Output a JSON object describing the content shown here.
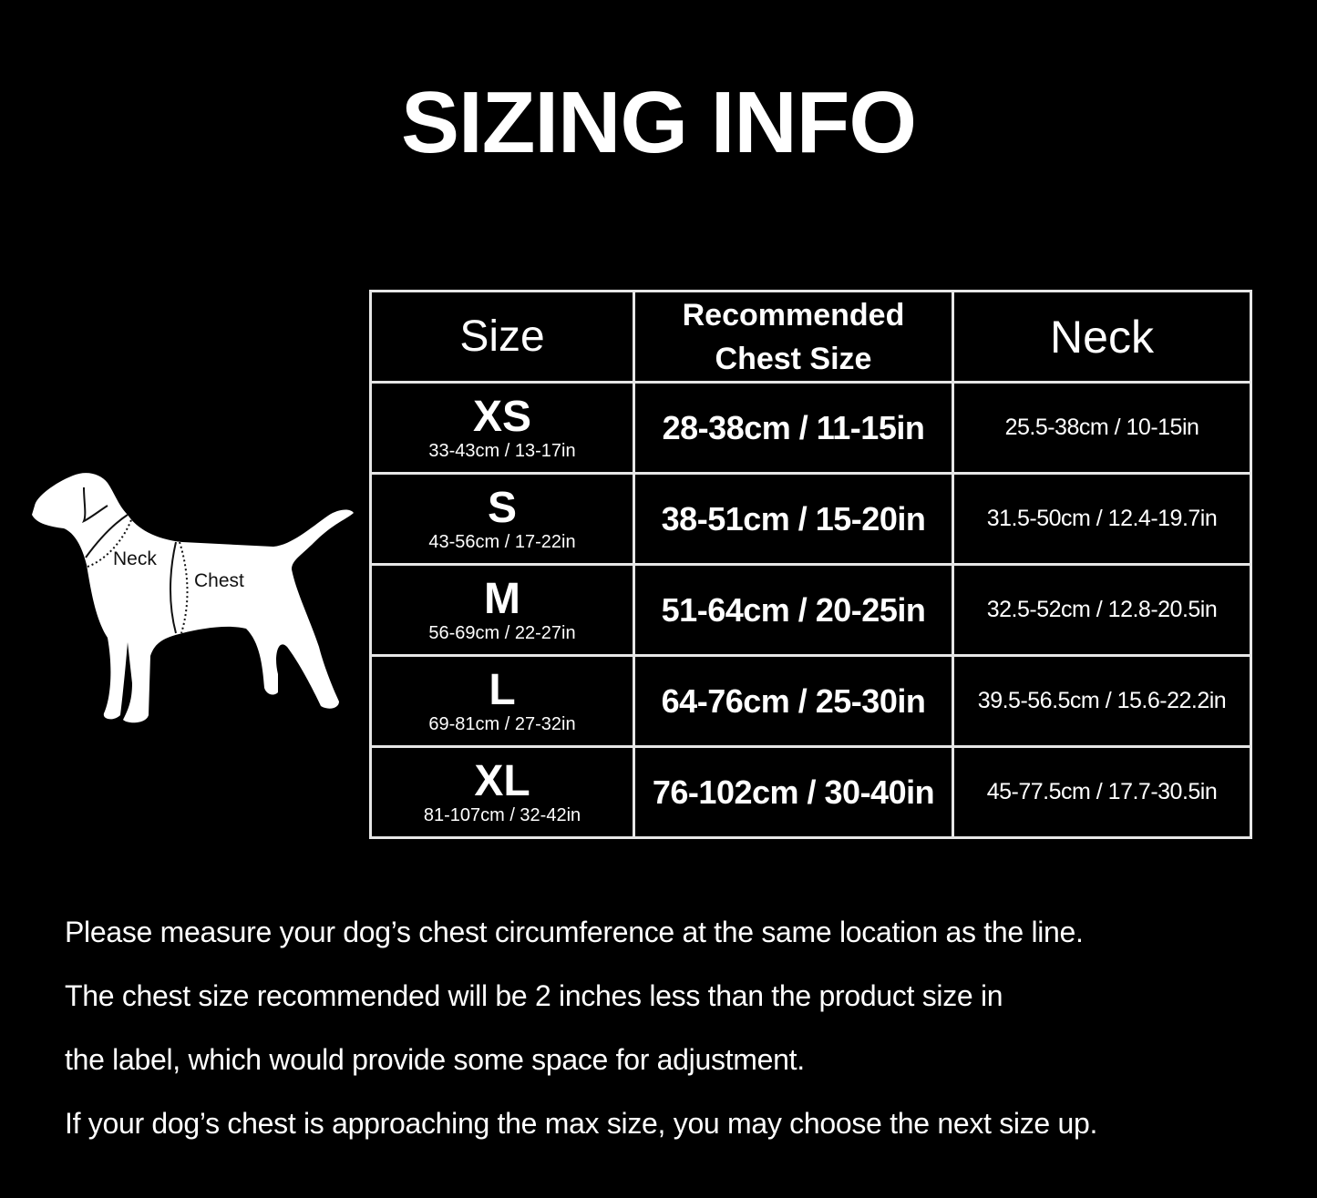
{
  "title": "SIZING INFO",
  "diagram": {
    "neck_label": "Neck",
    "chest_label": "Chest"
  },
  "table": {
    "headers": {
      "size": "Size",
      "chest_line1": "Recommended",
      "chest_line2": "Chest Size",
      "neck": "Neck"
    },
    "rows": [
      {
        "size": "XS",
        "product_size": "33-43cm / 13-17in",
        "chest": "28-38cm / 11-15in",
        "neck": "25.5-38cm / 10-15in"
      },
      {
        "size": "S",
        "product_size": "43-56cm / 17-22in",
        "chest": "38-51cm / 15-20in",
        "neck": "31.5-50cm / 12.4-19.7in"
      },
      {
        "size": "M",
        "product_size": "56-69cm / 22-27in",
        "chest": "51-64cm / 20-25in",
        "neck": "32.5-52cm / 12.8-20.5in"
      },
      {
        "size": "L",
        "product_size": "69-81cm / 27-32in",
        "chest": "64-76cm / 25-30in",
        "neck": "39.5-56.5cm / 15.6-22.2in"
      },
      {
        "size": "XL",
        "product_size": "81-107cm / 32-42in",
        "chest": "76-102cm / 30-40in",
        "neck": "45-77.5cm / 17.7-30.5in"
      }
    ]
  },
  "notes": [
    "Please measure your dog’s chest circumference at the same location as the line.",
    "The chest size recommended will be 2 inches less than the product size in",
    "the label, which would provide some space for adjustment.",
    "If your dog’s chest is approaching the max size, you may choose the next size up."
  ]
}
